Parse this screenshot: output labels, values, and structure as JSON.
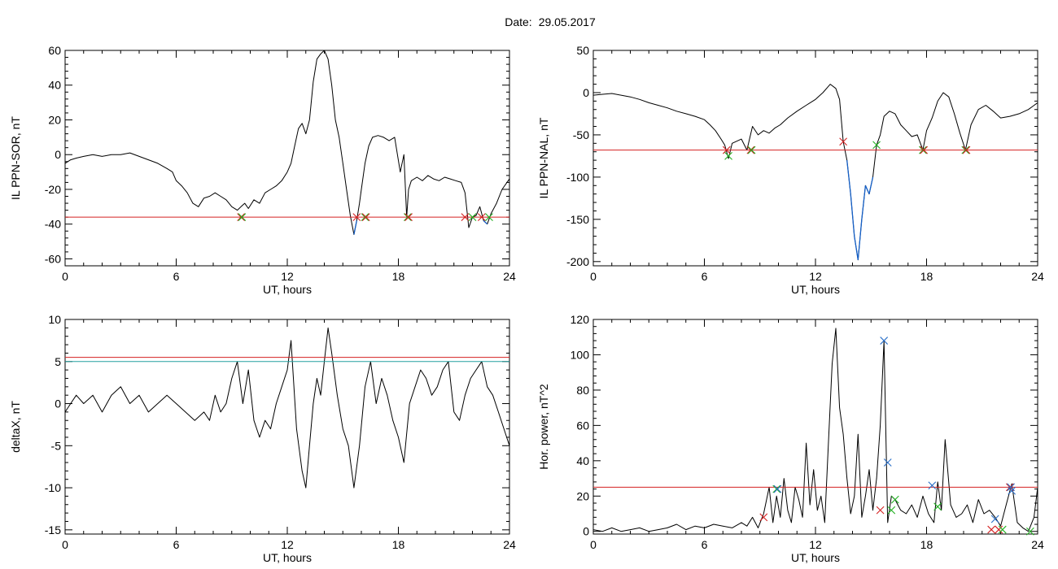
{
  "header": {
    "date_label": "Date:",
    "date_value": "29.05.2017"
  },
  "colors": {
    "data_line": "#000000",
    "threshold": "#d42020",
    "threshold_b": "#23a0a0",
    "below_segment": "#1560c8",
    "marker_red": "#d42020",
    "marker_green": "#22b022",
    "marker_blue": "#2a6fc8"
  },
  "chart_data": [
    {
      "type": "line",
      "panel": "top-left",
      "xlabel": "UT, hours",
      "ylabel": "IL PPN-SOR, nT",
      "xlim": [
        0,
        24
      ],
      "ylim": [
        -64,
        60
      ],
      "xticks": [
        0,
        6,
        12,
        18,
        24
      ],
      "yticks": [
        -60,
        -40,
        -20,
        0,
        20,
        40,
        60
      ],
      "thresholds": [
        {
          "value": -36,
          "color": "#d42020"
        }
      ],
      "below_threshold_color": "#1560c8",
      "series": [
        {
          "x": [
            0,
            0.3,
            0.6,
            1.0,
            1.5,
            2.0,
            2.5,
            3.0,
            3.5,
            4.0,
            4.5,
            5.0,
            5.5,
            5.8,
            6.0,
            6.3,
            6.6,
            6.9,
            7.2,
            7.5,
            7.8,
            8.1,
            8.4,
            8.7,
            9.0,
            9.3,
            9.5,
            9.7,
            9.9,
            10.2,
            10.5,
            10.8,
            11.1,
            11.4,
            11.7,
            12.0,
            12.2,
            12.4,
            12.6,
            12.8,
            13.0,
            13.2,
            13.4,
            13.6,
            13.8,
            14.0,
            14.2,
            14.4,
            14.6,
            14.8,
            15.0,
            15.2,
            15.4,
            15.6,
            15.75,
            15.9,
            16.0,
            16.2,
            16.4,
            16.6,
            16.9,
            17.2,
            17.5,
            17.8,
            18.1,
            18.3,
            18.45,
            18.55,
            18.7,
            19.0,
            19.3,
            19.6,
            19.9,
            20.2,
            20.5,
            20.8,
            21.1,
            21.4,
            21.6,
            21.8,
            22.0,
            22.2,
            22.4,
            22.6,
            22.8,
            23.0,
            23.3,
            23.6,
            24.0
          ],
          "y": [
            -5,
            -3,
            -2,
            -1,
            0,
            -1,
            0,
            0,
            1,
            -1,
            -3,
            -5,
            -8,
            -10,
            -15,
            -18,
            -22,
            -28,
            -30,
            -25,
            -24,
            -22,
            -24,
            -26,
            -30,
            -32,
            -30,
            -28,
            -31,
            -26,
            -28,
            -22,
            -20,
            -18,
            -15,
            -10,
            -5,
            5,
            15,
            18,
            12,
            20,
            42,
            55,
            58,
            60,
            55,
            40,
            20,
            10,
            -5,
            -20,
            -35,
            -46,
            -38,
            -28,
            -20,
            -5,
            5,
            10,
            11,
            10,
            8,
            10,
            -10,
            0,
            -36,
            -20,
            -15,
            -13,
            -15,
            -12,
            -14,
            -15,
            -13,
            -14,
            -15,
            -16,
            -22,
            -42,
            -36,
            -35,
            -30,
            -38,
            -40,
            -34,
            -28,
            -20,
            -14
          ]
        }
      ],
      "markers": [
        {
          "x": 9.5,
          "y": -36,
          "colors": [
            "#d42020",
            "#22b022"
          ]
        },
        {
          "x": 15.75,
          "y": -36,
          "colors": [
            "#d42020"
          ]
        },
        {
          "x": 16.2,
          "y": -36,
          "colors": [
            "#22b022",
            "#d42020"
          ]
        },
        {
          "x": 18.5,
          "y": -36,
          "colors": [
            "#22b022",
            "#d42020"
          ]
        },
        {
          "x": 21.6,
          "y": -36,
          "colors": [
            "#d42020"
          ]
        },
        {
          "x": 22.0,
          "y": -36,
          "colors": [
            "#22b022"
          ]
        },
        {
          "x": 22.5,
          "y": -36,
          "colors": [
            "#d42020"
          ]
        },
        {
          "x": 22.9,
          "y": -36,
          "colors": [
            "#22b022"
          ]
        }
      ]
    },
    {
      "type": "line",
      "panel": "top-right",
      "xlabel": "UT, hours",
      "ylabel": "IL PPN-NAL, nT",
      "xlim": [
        0,
        24
      ],
      "ylim": [
        -205,
        50
      ],
      "xticks": [
        0,
        6,
        12,
        18,
        24
      ],
      "yticks": [
        -200,
        -150,
        -100,
        -50,
        0,
        50
      ],
      "thresholds": [
        {
          "value": -68,
          "color": "#d42020"
        }
      ],
      "below_threshold_color": "#1560c8",
      "series": [
        {
          "x": [
            0,
            0.5,
            1.0,
            1.5,
            2.0,
            2.5,
            3.0,
            3.5,
            4.0,
            4.5,
            5.0,
            5.5,
            6.0,
            6.3,
            6.6,
            6.9,
            7.1,
            7.3,
            7.5,
            7.7,
            8.0,
            8.3,
            8.6,
            8.9,
            9.2,
            9.5,
            9.8,
            10.1,
            10.5,
            11.0,
            11.5,
            12.0,
            12.4,
            12.8,
            13.1,
            13.3,
            13.5,
            13.7,
            13.9,
            14.1,
            14.3,
            14.5,
            14.7,
            14.9,
            15.1,
            15.3,
            15.5,
            15.7,
            16.0,
            16.3,
            16.6,
            16.9,
            17.2,
            17.5,
            17.8,
            18.0,
            18.3,
            18.6,
            18.9,
            19.2,
            19.5,
            19.8,
            20.1,
            20.4,
            20.8,
            21.2,
            21.6,
            22.0,
            22.5,
            23.0,
            23.5,
            24.0
          ],
          "y": [
            -3,
            -2,
            -1,
            -3,
            -5,
            -8,
            -12,
            -15,
            -18,
            -22,
            -25,
            -28,
            -32,
            -38,
            -45,
            -55,
            -62,
            -78,
            -60,
            -58,
            -55,
            -68,
            -40,
            -50,
            -45,
            -48,
            -42,
            -38,
            -30,
            -22,
            -15,
            -8,
            0,
            10,
            5,
            -8,
            -58,
            -80,
            -120,
            -170,
            -198,
            -150,
            -110,
            -120,
            -100,
            -62,
            -50,
            -28,
            -22,
            -25,
            -38,
            -45,
            -52,
            -50,
            -68,
            -45,
            -30,
            -10,
            0,
            -5,
            -25,
            -48,
            -68,
            -38,
            -20,
            -15,
            -22,
            -30,
            -28,
            -25,
            -20,
            -12
          ]
        }
      ],
      "markers": [
        {
          "x": 7.2,
          "y": -68,
          "colors": [
            "#d42020"
          ]
        },
        {
          "x": 7.3,
          "y": -75,
          "colors": [
            "#22b022"
          ]
        },
        {
          "x": 8.5,
          "y": -68,
          "colors": [
            "#d42020",
            "#22b022"
          ]
        },
        {
          "x": 13.5,
          "y": -58,
          "colors": [
            "#d42020"
          ]
        },
        {
          "x": 15.3,
          "y": -62,
          "colors": [
            "#22b022"
          ]
        },
        {
          "x": 17.8,
          "y": -68,
          "colors": [
            "#22b022",
            "#d42020"
          ]
        },
        {
          "x": 20.1,
          "y": -68,
          "colors": [
            "#22b022",
            "#d42020"
          ]
        }
      ]
    },
    {
      "type": "line",
      "panel": "bottom-left",
      "xlabel": "UT, hours",
      "ylabel": "deltaX, nT",
      "xlim": [
        0,
        24
      ],
      "ylim": [
        -15.5,
        10
      ],
      "xticks": [
        0,
        6,
        12,
        18,
        24
      ],
      "yticks": [
        -15,
        -10,
        -5,
        0,
        5,
        10
      ],
      "thresholds": [
        {
          "value": 5.5,
          "color": "#d42020"
        },
        {
          "value": 5.0,
          "color": "#23a0a0"
        }
      ],
      "series": [
        {
          "x": [
            0,
            0.3,
            0.6,
            1.0,
            1.5,
            2.0,
            2.5,
            3.0,
            3.5,
            4.0,
            4.5,
            5.0,
            5.5,
            6.0,
            6.5,
            7.0,
            7.5,
            7.8,
            8.1,
            8.4,
            8.7,
            9.0,
            9.3,
            9.6,
            9.9,
            10.2,
            10.5,
            10.8,
            11.1,
            11.4,
            11.7,
            12.0,
            12.2,
            12.5,
            12.8,
            13.0,
            13.2,
            13.4,
            13.6,
            13.8,
            14.0,
            14.2,
            14.4,
            14.7,
            15.0,
            15.3,
            15.6,
            15.9,
            16.2,
            16.5,
            16.8,
            17.1,
            17.4,
            17.7,
            18.0,
            18.3,
            18.6,
            18.9,
            19.2,
            19.5,
            19.8,
            20.1,
            20.4,
            20.7,
            21.0,
            21.3,
            21.6,
            21.9,
            22.2,
            22.5,
            22.8,
            23.1,
            23.4,
            23.7,
            24.0
          ],
          "y": [
            -1,
            0,
            1,
            0,
            1,
            -1,
            1,
            2,
            0,
            1,
            -1,
            0,
            1,
            0,
            -1,
            -2,
            -1,
            -2,
            1,
            -1,
            0,
            3,
            5,
            0,
            4,
            -2,
            -4,
            -2,
            -3,
            0,
            2,
            4,
            7.5,
            -3,
            -8,
            -10,
            -5,
            0,
            3,
            1,
            5,
            9,
            6,
            1,
            -3,
            -5,
            -10,
            -5,
            2,
            5,
            0,
            3,
            1,
            -2,
            -4,
            -7,
            0,
            2,
            4,
            3,
            1,
            2,
            4,
            5,
            -1,
            -2,
            1,
            3,
            4,
            5,
            2,
            1,
            -1,
            -3,
            -5
          ]
        }
      ],
      "markers": []
    },
    {
      "type": "line",
      "panel": "bottom-right",
      "xlabel": "UT, hours",
      "ylabel": "Hor. power, nT^2",
      "xlim": [
        0,
        24
      ],
      "ylim": [
        -1.5,
        120
      ],
      "xticks": [
        0,
        6,
        12,
        18,
        24
      ],
      "yticks": [
        0,
        20,
        40,
        60,
        80,
        100,
        120
      ],
      "thresholds": [
        {
          "value": 25,
          "color": "#d42020"
        }
      ],
      "series": [
        {
          "x": [
            0,
            0.5,
            1.0,
            1.5,
            2.0,
            2.5,
            3.0,
            3.5,
            4.0,
            4.5,
            5.0,
            5.5,
            6.0,
            6.5,
            7.0,
            7.5,
            8.0,
            8.3,
            8.6,
            8.9,
            9.2,
            9.5,
            9.7,
            9.9,
            10.1,
            10.3,
            10.5,
            10.7,
            10.9,
            11.1,
            11.3,
            11.5,
            11.7,
            11.9,
            12.1,
            12.3,
            12.5,
            12.7,
            12.9,
            13.1,
            13.3,
            13.5,
            13.7,
            13.9,
            14.1,
            14.3,
            14.5,
            14.7,
            14.9,
            15.1,
            15.3,
            15.5,
            15.7,
            15.9,
            16.1,
            16.3,
            16.6,
            16.9,
            17.2,
            17.5,
            17.8,
            18.1,
            18.4,
            18.6,
            18.8,
            19.0,
            19.3,
            19.6,
            19.9,
            20.2,
            20.5,
            20.8,
            21.1,
            21.4,
            21.7,
            22.0,
            22.3,
            22.6,
            22.9,
            23.2,
            23.5,
            23.8,
            24.0
          ],
          "y": [
            1,
            0,
            2,
            0,
            1,
            2,
            0,
            1,
            2,
            4,
            1,
            3,
            2,
            4,
            3,
            2,
            5,
            3,
            8,
            2,
            10,
            25,
            5,
            20,
            8,
            30,
            12,
            5,
            25,
            18,
            8,
            50,
            15,
            35,
            12,
            20,
            5,
            50,
            95,
            115,
            70,
            55,
            30,
            10,
            20,
            55,
            8,
            20,
            35,
            12,
            30,
            60,
            108,
            5,
            20,
            18,
            12,
            10,
            15,
            8,
            20,
            10,
            5,
            28,
            12,
            52,
            15,
            8,
            10,
            15,
            5,
            18,
            10,
            12,
            8,
            3,
            15,
            27,
            5,
            2,
            0,
            8,
            25
          ]
        }
      ],
      "markers": [
        {
          "x": 9.2,
          "y": 8,
          "colors": [
            "#d42020"
          ]
        },
        {
          "x": 9.9,
          "y": 24,
          "colors": [
            "#22b022",
            "#2a6fc8"
          ]
        },
        {
          "x": 15.5,
          "y": 12,
          "colors": [
            "#d42020"
          ]
        },
        {
          "x": 15.7,
          "y": 108,
          "colors": [
            "#2a6fc8"
          ]
        },
        {
          "x": 15.9,
          "y": 39,
          "colors": [
            "#2a6fc8"
          ]
        },
        {
          "x": 16.1,
          "y": 12,
          "colors": [
            "#22b022"
          ]
        },
        {
          "x": 16.3,
          "y": 18,
          "colors": [
            "#22b022"
          ]
        },
        {
          "x": 18.3,
          "y": 26,
          "colors": [
            "#2a6fc8"
          ]
        },
        {
          "x": 18.6,
          "y": 14,
          "colors": [
            "#22b022"
          ]
        },
        {
          "x": 21.5,
          "y": 1,
          "colors": [
            "#d42020"
          ]
        },
        {
          "x": 21.7,
          "y": 7,
          "colors": [
            "#2a6fc8"
          ]
        },
        {
          "x": 21.9,
          "y": 1,
          "colors": [
            "#d42020"
          ]
        },
        {
          "x": 22.1,
          "y": 1,
          "colors": [
            "#22b022"
          ]
        },
        {
          "x": 22.5,
          "y": 25,
          "colors": [
            "#d42020",
            "#2a6fc8"
          ]
        },
        {
          "x": 22.6,
          "y": 23,
          "colors": [
            "#2a6fc8"
          ]
        },
        {
          "x": 23.6,
          "y": 0,
          "colors": [
            "#22b022"
          ]
        }
      ]
    }
  ]
}
